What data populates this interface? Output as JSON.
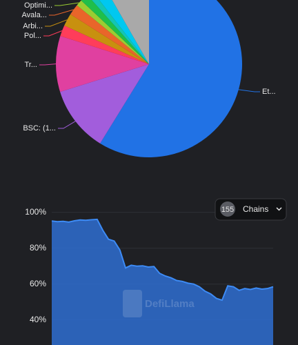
{
  "chart_data": [
    {
      "type": "pie",
      "categories": [
        "Et...",
        "BSC: (1...",
        "Tr...",
        "Pol...",
        "Arbi...",
        "Avala...",
        "Optimi...",
        null,
        null,
        null,
        null
      ],
      "values": [
        58.8,
        11.4,
        9.7,
        1.9,
        2.2,
        1.9,
        1.1,
        1.4,
        1.1,
        2.2,
        8.3
      ],
      "colors": [
        "#2172e5",
        "#a25ddc",
        "#e040a0",
        "#ff3d5a",
        "#c8900f",
        "#e9652a",
        "#9acd32",
        "#1fbf4a",
        "#13c6b3",
        "#00c8f0",
        "#a9a9a9"
      ]
    },
    {
      "type": "area",
      "values": [
        95.2,
        94.8,
        95.0,
        94.6,
        95.3,
        95.8,
        95.6,
        95.9,
        96.1,
        90.0,
        85.0,
        84.0,
        79.0,
        69.0,
        70.5,
        70.0,
        70.2,
        69.5,
        69.8,
        66.0,
        64.5,
        63.5,
        62.0,
        61.5,
        60.5,
        60.0,
        58.5,
        56.0,
        54.5,
        52.0,
        51.0,
        59.0,
        58.5,
        56.5,
        57.5,
        57.0,
        57.8,
        57.2,
        57.5,
        58.5
      ],
      "color": "#2f6fd1",
      "line_color": "#3d8bf5",
      "ylim": [
        26,
        103
      ],
      "yticks": [
        {
          "value": 40,
          "label": "40%"
        },
        {
          "value": 60,
          "label": "60%"
        },
        {
          "value": 80,
          "label": "80%"
        },
        {
          "value": 100,
          "label": "100%"
        }
      ],
      "grid": true,
      "watermark": "DefiLlama"
    }
  ],
  "controls": {
    "count": 155,
    "label": "Chains"
  }
}
